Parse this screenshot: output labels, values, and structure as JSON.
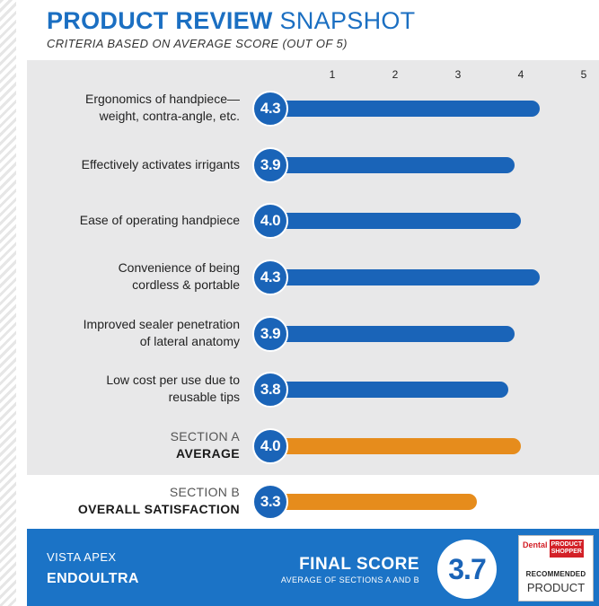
{
  "chart_data": {
    "type": "bar",
    "title_bold": "PRODUCT REVIEW",
    "title_light": "SNAPSHOT",
    "subtitle": "CRITERIA BASED ON AVERAGE SCORE (OUT OF 5)",
    "xlim": [
      0,
      5
    ],
    "ticks": [
      "1",
      "2",
      "3",
      "4",
      "5"
    ],
    "rows": [
      {
        "label1": "Ergonomics of handpiece—",
        "label2": "weight, contra-angle, etc.",
        "value": 4.3,
        "display": "4.3",
        "kind": "criterion"
      },
      {
        "label1": "Effectively activates irrigants",
        "label2": "",
        "value": 3.9,
        "display": "3.9",
        "kind": "criterion"
      },
      {
        "label1": "Ease of operating handpiece",
        "label2": "",
        "value": 4.0,
        "display": "4.0",
        "kind": "criterion"
      },
      {
        "label1": "Convenience of being",
        "label2": "cordless & portable",
        "value": 4.3,
        "display": "4.3",
        "kind": "criterion"
      },
      {
        "label1": "Improved sealer penetration",
        "label2": "of lateral anatomy",
        "value": 3.9,
        "display": "3.9",
        "kind": "criterion"
      },
      {
        "label1": "Low cost per use due to",
        "label2": "reusable tips",
        "value": 3.8,
        "display": "3.8",
        "kind": "criterion"
      },
      {
        "label1": "SECTION A",
        "label2": "AVERAGE",
        "value": 4.0,
        "display": "4.0",
        "kind": "average"
      },
      {
        "label1": "SECTION B",
        "label2": "OVERALL SATISFACTION",
        "value": 3.3,
        "display": "3.3",
        "kind": "average"
      }
    ],
    "colors": {
      "criterion": "#1a64b8",
      "average": "#e68c1c"
    }
  },
  "footer": {
    "product_line1": "VISTA APEX",
    "product_line2": "ENDOULTRA",
    "final_title": "FINAL SCORE",
    "final_sub": "AVERAGE OF SECTIONS A AND B",
    "final_value": "3.7"
  },
  "seal": {
    "dental": "Dental",
    "product_shopper_1": "PRODUCT",
    "product_shopper_2": "SHOPPER",
    "recommended": "RECOMMENDED",
    "product": "PRODUCT"
  }
}
